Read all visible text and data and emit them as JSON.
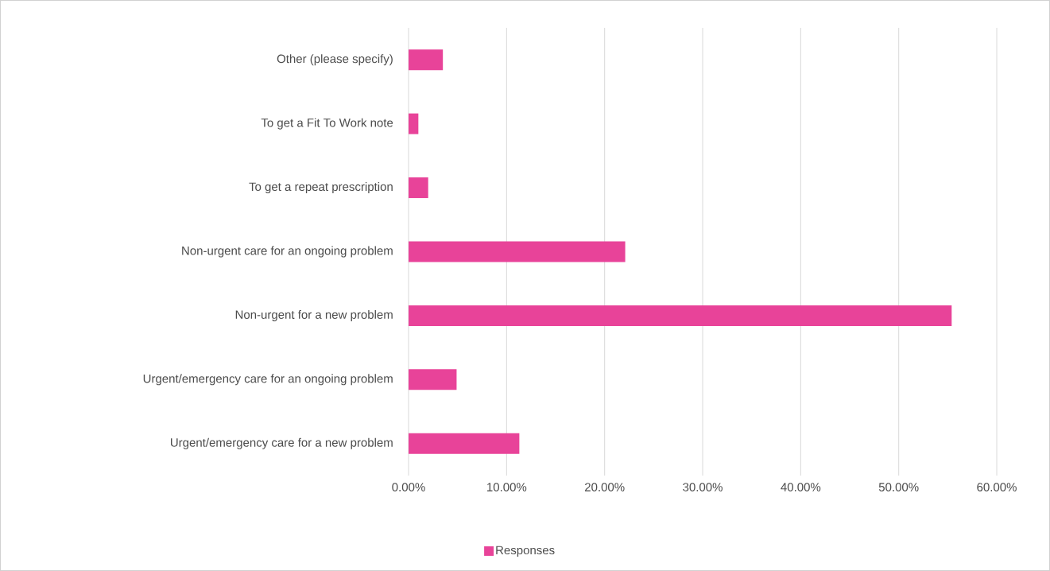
{
  "chart_data": {
    "type": "bar",
    "orientation": "horizontal",
    "categories": [
      "Other (please specify)",
      "To get a Fit To Work note",
      "To get a repeat prescription",
      "Non-urgent care for an ongoing problem",
      "Non-urgent for a new problem",
      "Urgent/emergency care for an ongoing problem",
      "Urgent/emergency care for a new problem"
    ],
    "series": [
      {
        "name": "Responses",
        "color": "#e84399",
        "values": [
          3.5,
          1.0,
          2.0,
          22.1,
          55.4,
          4.9,
          11.3
        ]
      }
    ],
    "xlim": [
      0,
      60
    ],
    "xticks": [
      {
        "value": 0,
        "label": "0.00%"
      },
      {
        "value": 10,
        "label": "10.00%"
      },
      {
        "value": 20,
        "label": "20.00%"
      },
      {
        "value": 30,
        "label": "30.00%"
      },
      {
        "value": 40,
        "label": "40.00%"
      },
      {
        "value": 50,
        "label": "50.00%"
      },
      {
        "value": 60,
        "label": "60.00%"
      }
    ],
    "grid": "x",
    "legend": "bottom"
  }
}
